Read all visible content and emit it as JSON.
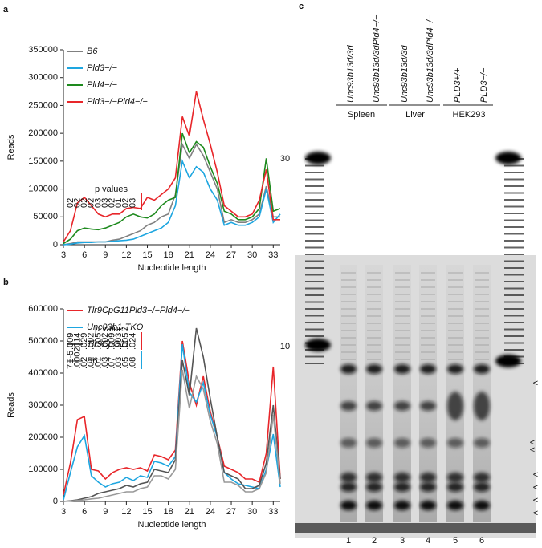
{
  "chart_data": [
    {
      "type": "line",
      "panel_label": "a",
      "y_label": "Reads",
      "x_label": "Nucleotide length",
      "xlim": [
        3,
        34
      ],
      "xticks": [
        3,
        6,
        9,
        12,
        15,
        18,
        21,
        24,
        27,
        30,
        33
      ],
      "ylim": [
        0,
        350000
      ],
      "yticks": [
        0,
        50000,
        100000,
        150000,
        200000,
        250000,
        300000,
        350000
      ],
      "x": [
        3,
        4,
        5,
        6,
        7,
        8,
        9,
        10,
        11,
        12,
        13,
        14,
        15,
        16,
        17,
        18,
        19,
        20,
        21,
        22,
        23,
        24,
        25,
        26,
        27,
        28,
        29,
        30,
        31,
        32,
        33,
        34
      ],
      "series": [
        {
          "name": "B6",
          "color": "#808080",
          "values": [
            0,
            2000,
            5000,
            5000,
            5000,
            5000,
            5000,
            8000,
            10000,
            15000,
            20000,
            25000,
            35000,
            40000,
            50000,
            55000,
            90000,
            180000,
            155000,
            180000,
            160000,
            130000,
            100000,
            40000,
            45000,
            40000,
            40000,
            45000,
            55000,
            105000,
            50000,
            50000
          ]
        },
        {
          "name": "Pld3−/−",
          "color": "#1ea6e0",
          "values": [
            0,
            1000,
            3000,
            4000,
            4000,
            5000,
            5000,
            6000,
            7000,
            8000,
            10000,
            15000,
            20000,
            25000,
            30000,
            40000,
            70000,
            150000,
            120000,
            140000,
            130000,
            100000,
            80000,
            35000,
            40000,
            35000,
            35000,
            40000,
            50000,
            100000,
            40000,
            55000
          ]
        },
        {
          "name": "Pld4−/−",
          "color": "#1e8a1e",
          "values": [
            2000,
            10000,
            25000,
            30000,
            28000,
            27000,
            30000,
            35000,
            40000,
            50000,
            55000,
            50000,
            48000,
            55000,
            70000,
            80000,
            85000,
            200000,
            165000,
            185000,
            175000,
            140000,
            110000,
            60000,
            55000,
            45000,
            45000,
            50000,
            65000,
            155000,
            60000,
            65000
          ]
        },
        {
          "name": "Pld3−/−Pld4−/−",
          "color": "#e8262a",
          "values": [
            5000,
            25000,
            75000,
            85000,
            70000,
            55000,
            50000,
            55000,
            55000,
            65000,
            67000,
            65000,
            85000,
            80000,
            90000,
            100000,
            120000,
            230000,
            195000,
            275000,
            225000,
            180000,
            130000,
            70000,
            60000,
            50000,
            50000,
            55000,
            80000,
            135000,
            45000,
            45000
          ]
        }
      ],
      "p_title": "p values",
      "p_values": [
        [
          ".02",
          ".02",
          ".02",
          ".02",
          ".03",
          ".03",
          ".02",
          ".01",
          ".02",
          ".03"
        ]
      ]
    },
    {
      "type": "line",
      "panel_label": "b",
      "y_label": "Reads",
      "x_label": "Nucleotide length",
      "xlim": [
        3,
        34
      ],
      "xticks": [
        3,
        6,
        9,
        12,
        15,
        18,
        21,
        24,
        27,
        30,
        33
      ],
      "ylim": [
        0,
        600000
      ],
      "yticks": [
        0,
        100000,
        200000,
        300000,
        400000,
        500000,
        600000
      ],
      "x": [
        3,
        4,
        5,
        6,
        7,
        8,
        9,
        10,
        11,
        12,
        13,
        14,
        15,
        16,
        17,
        18,
        19,
        20,
        21,
        22,
        23,
        24,
        25,
        26,
        27,
        28,
        29,
        30,
        31,
        32,
        33,
        34
      ],
      "series": [
        {
          "name": "Tlr9CpG11Pld3−/−Pld4−/−",
          "color": "#e8262a",
          "values": [
            20000,
            120000,
            255000,
            265000,
            100000,
            95000,
            70000,
            90000,
            100000,
            105000,
            100000,
            105000,
            95000,
            145000,
            140000,
            130000,
            160000,
            500000,
            370000,
            300000,
            390000,
            280000,
            200000,
            110000,
            100000,
            90000,
            70000,
            70000,
            60000,
            150000,
            420000,
            70000
          ]
        },
        {
          "name": "Unc93b1-TKO",
          "color": "#1ea6e0",
          "values": [
            5000,
            90000,
            170000,
            205000,
            80000,
            60000,
            45000,
            55000,
            60000,
            75000,
            65000,
            80000,
            75000,
            125000,
            120000,
            110000,
            140000,
            490000,
            340000,
            310000,
            370000,
            270000,
            200000,
            90000,
            70000,
            55000,
            50000,
            45000,
            40000,
            100000,
            210000,
            45000
          ]
        },
        {
          "name": "Tlr9CpG11",
          "color": "#555555",
          "values": [
            0,
            2000,
            5000,
            10000,
            15000,
            25000,
            30000,
            35000,
            40000,
            50000,
            45000,
            55000,
            60000,
            100000,
            95000,
            90000,
            130000,
            440000,
            330000,
            540000,
            450000,
            320000,
            200000,
            90000,
            80000,
            70000,
            40000,
            40000,
            50000,
            120000,
            300000,
            70000
          ]
        },
        {
          "name": "B6",
          "color": "#999999",
          "values": [
            0,
            1000,
            3000,
            5000,
            8000,
            10000,
            15000,
            20000,
            25000,
            30000,
            30000,
            40000,
            45000,
            80000,
            80000,
            70000,
            100000,
            410000,
            290000,
            390000,
            350000,
            250000,
            180000,
            60000,
            60000,
            50000,
            30000,
            30000,
            40000,
            90000,
            270000,
            55000
          ]
        }
      ],
      "p_title": "p values",
      "p_values": [
        [
          ".009",
          ".014",
          ".029",
          ".002",
          ".005",
          ".002",
          ".009",
          ".003",
          ".005",
          ".024"
        ],
        [
          "7E-5",
          ".0002",
          ".02",
          ".01",
          ".01",
          ".03",
          ".07",
          ".03",
          ".05",
          ".08"
        ]
      ]
    }
  ],
  "gel": {
    "panel_label": "c",
    "lanes": [
      "Unc93b13d/3d",
      "Unc93b13d/3dPld4−/−",
      "Unc93b13d/3d",
      "Unc93b13d/3dPld4−/−",
      "PLD3+/+",
      "PLD3−/−"
    ],
    "groups": [
      "Spleen",
      "Liver",
      "HEK293"
    ],
    "markers": [
      "30",
      "10"
    ],
    "lane_numbers": [
      "1",
      "2",
      "3",
      "4",
      "5",
      "6"
    ],
    "arrows": [
      "<",
      "<",
      "<",
      "<",
      "<",
      "<",
      "<"
    ]
  }
}
